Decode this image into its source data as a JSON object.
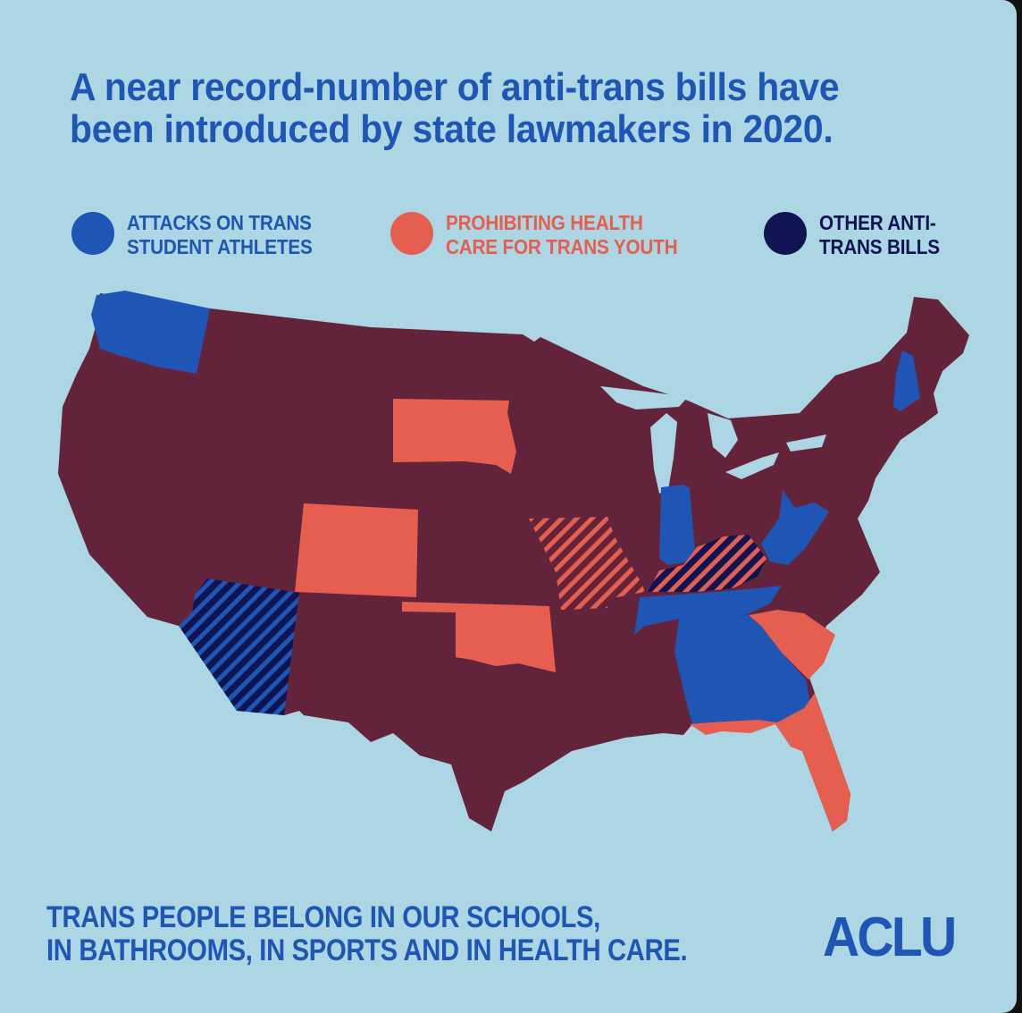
{
  "headline": {
    "line1": "A near record-number of anti-trans bills have",
    "line2": "been introduced by state lawmakers in 2020."
  },
  "legend": [
    {
      "line1": "ATTACKS ON TRANS",
      "line2": "STUDENT ATHLETES",
      "color": "#1f55b4"
    },
    {
      "line1": "PROHIBITING HEALTH",
      "line2": "CARE FOR TRANS YOUTH",
      "color": "#e55e50"
    },
    {
      "line1": "OTHER ANTI-",
      "line2": "TRANS BILLS",
      "color": "#101452"
    }
  ],
  "map": {
    "colors": {
      "background": "#acd6e3",
      "base_states": "#63243b",
      "athletes": "#1f55b4",
      "health_care": "#e55e50",
      "other": "#101452"
    },
    "states_athletes": [
      "Washington",
      "New Hampshire",
      "Indiana",
      "West Virginia",
      "Tennessee",
      "Georgia"
    ],
    "states_health_care": [
      "South Dakota",
      "Colorado",
      "Oklahoma",
      "South Carolina",
      "Florida"
    ],
    "states_athletes_and_other": [
      "Arizona"
    ],
    "states_health_care_and_other": [
      "Missouri",
      "Kentucky"
    ]
  },
  "tagline": {
    "line1": "TRANS PEOPLE BELONG IN OUR SCHOOLS,",
    "line2": "IN BATHROOMS, IN SPORTS AND IN HEALTH CARE."
  },
  "logo": "ACLU"
}
